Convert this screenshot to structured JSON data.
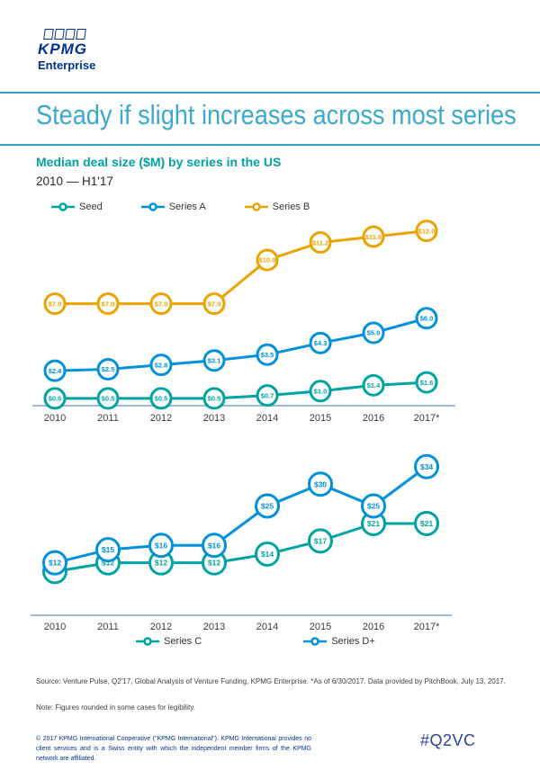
{
  "brand": {
    "logo_text": "KPMG",
    "logo_sub": "Enterprise"
  },
  "header": {
    "title": "Steady if slight increases across most series"
  },
  "intro": {
    "subtitle": "Median deal size ($M) by series in the US",
    "period": "2010 — H1'17"
  },
  "colors": {
    "kpmg_blue": "#00338D",
    "title_blue": "#3AA9CC",
    "rule_blue": "#2BA6C4",
    "teal": "#00A3A1",
    "series_blue": "#0091DA",
    "gold": "#EAA300",
    "axis_line": "#9DB8D8",
    "text_dark": "#404040"
  },
  "chart_data": [
    {
      "type": "line",
      "title": "Median deal size ($M) by series in the US — Seed, Series A, Series B",
      "categories": [
        "2010",
        "2011",
        "2012",
        "2013",
        "2014",
        "2015",
        "2016",
        "2017*"
      ],
      "series": [
        {
          "name": "Seed",
          "color": "#00A3A1",
          "values": [
            0.5,
            0.5,
            0.5,
            0.5,
            0.7,
            1.0,
            1.4,
            1.6
          ],
          "labels": [
            "$0.5",
            "$0.5",
            "$0.5",
            "$0.5",
            "$0.7",
            "$1.0",
            "$1.4",
            "$1.6"
          ]
        },
        {
          "name": "Series A",
          "color": "#0091DA",
          "values": [
            2.4,
            2.5,
            2.8,
            3.1,
            3.5,
            4.3,
            5.0,
            6.0
          ],
          "labels": [
            "$2.4",
            "$2.5",
            "$2.8",
            "$3.1",
            "$3.5",
            "$4.3",
            "$5.0",
            "$6.0"
          ]
        },
        {
          "name": "Series B",
          "color": "#EAA300",
          "values": [
            7.0,
            7.0,
            7.0,
            7.0,
            10.0,
            11.2,
            11.6,
            12.0
          ],
          "labels": [
            "$7.0",
            "$7.0",
            "$7.0",
            "$7.0",
            "$10.0",
            "$11.2",
            "$11.6",
            "$12.0"
          ]
        }
      ],
      "xlabel": "",
      "ylabel": "Median deal size ($M)",
      "ylim": [
        0,
        13
      ],
      "grid": false,
      "legend_position": "top"
    },
    {
      "type": "line",
      "title": "Median deal size ($M) by series in the US — Series C, Series D+",
      "categories": [
        "2010",
        "2011",
        "2012",
        "2013",
        "2014",
        "2015",
        "2016",
        "2017*"
      ],
      "series": [
        {
          "name": "Series C",
          "color": "#00A3A1",
          "values": [
            10,
            12,
            12,
            12,
            14,
            17,
            21,
            21
          ],
          "labels": [
            "$10",
            "$12",
            "$12",
            "$12",
            "$14",
            "$17",
            "$21",
            "$21"
          ]
        },
        {
          "name": "Series D+",
          "color": "#0091DA",
          "values": [
            12,
            15,
            16,
            16,
            25,
            30,
            25,
            34
          ],
          "labels": [
            "$12",
            "$15",
            "$16",
            "$16",
            "$25",
            "$30",
            "$25",
            "$34"
          ]
        }
      ],
      "xlabel": "",
      "ylabel": "Median deal size ($M)",
      "ylim": [
        0,
        40
      ],
      "grid": false,
      "legend_position": "bottom"
    }
  ],
  "footnotes": {
    "source": "Source: Venture Pulse, Q2'17, Global Analysis of Venture Funding, KPMG Enterprise. *As of 6/30/2017. Data provided by PitchBook, July 13, 2017.",
    "note": "Note: Figures rounded in some cases for legibility."
  },
  "footer": {
    "copyright": "© 2017 KPMG International Cooperative (\"KPMG International\"). KPMG International provides no client services and is a Swiss entity with which the independent member firms of the KPMG network are affiliated.",
    "hashtag": "#Q2VC"
  }
}
